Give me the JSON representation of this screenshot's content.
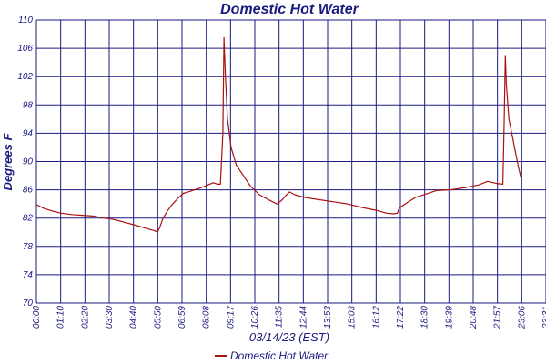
{
  "chart_data": {
    "type": "line",
    "title": "Domestic Hot Water",
    "xlabel": "03/14/23 (EST)",
    "ylabel": "Degrees F",
    "ylim": [
      70,
      110
    ],
    "yticks": [
      70,
      74,
      78,
      82,
      86,
      90,
      94,
      98,
      102,
      106,
      110
    ],
    "xlim": [
      0,
      1440
    ],
    "x_tick_labels": [
      "00:00",
      "01:10",
      "02:20",
      "03:30",
      "04:40",
      "05:50",
      "06:59",
      "08:08",
      "09:17",
      "10:26",
      "11:35",
      "12:44",
      "13:53",
      "15:03",
      "16:12",
      "17:22",
      "18:30",
      "19:39",
      "20:48",
      "21:57",
      "23:06",
      "23:31"
    ],
    "grid": true,
    "legend_position": "bottom-center",
    "colors": {
      "series": "#aa1111",
      "grid": "#1a1a80",
      "text": "#1a1a80"
    },
    "series": [
      {
        "name": "Domestic Hot Water",
        "x_unit": "minutes since 00:00",
        "points": [
          [
            0,
            83.9
          ],
          [
            20,
            83.4
          ],
          [
            45,
            83.0
          ],
          [
            70,
            82.7
          ],
          [
            100,
            82.5
          ],
          [
            130,
            82.4
          ],
          [
            160,
            82.3
          ],
          [
            190,
            82.0
          ],
          [
            220,
            81.8
          ],
          [
            250,
            81.4
          ],
          [
            280,
            81.0
          ],
          [
            300,
            80.7
          ],
          [
            320,
            80.4
          ],
          [
            335,
            80.2
          ],
          [
            342,
            80.0
          ],
          [
            348,
            80.6
          ],
          [
            358,
            82.0
          ],
          [
            370,
            83.0
          ],
          [
            385,
            84.0
          ],
          [
            400,
            84.8
          ],
          [
            415,
            85.5
          ],
          [
            435,
            85.8
          ],
          [
            460,
            86.2
          ],
          [
            480,
            86.6
          ],
          [
            500,
            87.0
          ],
          [
            512,
            86.8
          ],
          [
            520,
            86.8
          ],
          [
            527,
            94.0
          ],
          [
            530,
            107.5
          ],
          [
            534,
            102.0
          ],
          [
            540,
            96.0
          ],
          [
            550,
            92.0
          ],
          [
            565,
            89.5
          ],
          [
            585,
            88.0
          ],
          [
            605,
            86.5
          ],
          [
            630,
            85.3
          ],
          [
            660,
            84.5
          ],
          [
            680,
            84.0
          ],
          [
            695,
            84.6
          ],
          [
            705,
            85.2
          ],
          [
            715,
            85.7
          ],
          [
            730,
            85.3
          ],
          [
            760,
            84.9
          ],
          [
            800,
            84.6
          ],
          [
            840,
            84.3
          ],
          [
            880,
            84.0
          ],
          [
            920,
            83.5
          ],
          [
            960,
            83.1
          ],
          [
            990,
            82.7
          ],
          [
            1010,
            82.6
          ],
          [
            1020,
            82.7
          ],
          [
            1025,
            83.4
          ],
          [
            1045,
            84.1
          ],
          [
            1070,
            84.9
          ],
          [
            1100,
            85.4
          ],
          [
            1130,
            85.9
          ],
          [
            1170,
            86.0
          ],
          [
            1210,
            86.3
          ],
          [
            1250,
            86.7
          ],
          [
            1275,
            87.2
          ],
          [
            1300,
            86.9
          ],
          [
            1318,
            86.8
          ],
          [
            1322,
            96.0
          ],
          [
            1325,
            105.0
          ],
          [
            1328,
            101.0
          ],
          [
            1335,
            96.0
          ],
          [
            1345,
            93.5
          ],
          [
            1355,
            91.0
          ],
          [
            1363,
            89.0
          ],
          [
            1370,
            87.5
          ]
        ]
      }
    ]
  }
}
